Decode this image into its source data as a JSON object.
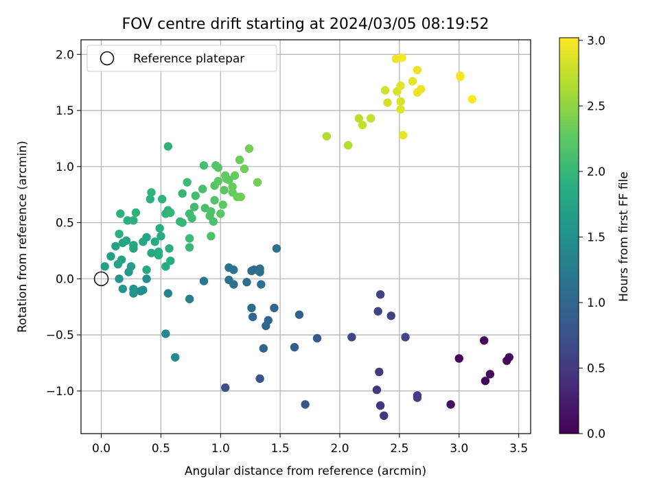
{
  "chart_data": {
    "type": "scatter",
    "title": "FOV centre drift starting at 2024/03/05 08:19:52",
    "xlabel": "Angular distance from reference (arcmin)",
    "ylabel": "Rotation from reference (arcmin)",
    "colorbar_label": "Hours from first FF file",
    "xlim": [
      -0.17,
      3.6
    ],
    "ylim": [
      -1.38,
      2.13
    ],
    "clim": [
      0.0,
      3.02
    ],
    "colormap": "viridis",
    "grid": true,
    "legend_placement": "top-left",
    "legend": [
      {
        "label": "Reference platepar",
        "marker": "open-circle"
      }
    ],
    "xticks": [
      {
        "v": 0.0,
        "l": "0.0"
      },
      {
        "v": 0.5,
        "l": "0.5"
      },
      {
        "v": 1.0,
        "l": "1.0"
      },
      {
        "v": 1.5,
        "l": "1.5"
      },
      {
        "v": 2.0,
        "l": "2.0"
      },
      {
        "v": 2.5,
        "l": "2.5"
      },
      {
        "v": 3.0,
        "l": "3.0"
      },
      {
        "v": 3.5,
        "l": "3.5"
      }
    ],
    "yticks": [
      {
        "v": -1.0,
        "l": "−1.0"
      },
      {
        "v": -0.5,
        "l": "−0.5"
      },
      {
        "v": 0.0,
        "l": "0.0"
      },
      {
        "v": 0.5,
        "l": "0.5"
      },
      {
        "v": 1.0,
        "l": "1.0"
      },
      {
        "v": 1.5,
        "l": "1.5"
      },
      {
        "v": 2.0,
        "l": "2.0"
      }
    ],
    "cticks": [
      {
        "v": 0.0,
        "l": "0.0"
      },
      {
        "v": 0.5,
        "l": "0.5"
      },
      {
        "v": 1.0,
        "l": "1.0"
      },
      {
        "v": 1.5,
        "l": "1.5"
      },
      {
        "v": 2.0,
        "l": "2.0"
      },
      {
        "v": 2.5,
        "l": "2.5"
      },
      {
        "v": 3.0,
        "l": "3.0"
      }
    ],
    "reference_point": {
      "x": 0.0,
      "y": 0.0
    },
    "points": [
      [
        3.0,
        -0.71,
        0.05
      ],
      [
        3.21,
        -0.55,
        0.04
      ],
      [
        3.22,
        -0.91,
        0.06
      ],
      [
        3.26,
        -0.85,
        0.07
      ],
      [
        3.4,
        -0.73,
        0.08
      ],
      [
        3.42,
        -0.7,
        0.07
      ],
      [
        2.93,
        -1.12,
        0.12
      ],
      [
        2.34,
        -1.13,
        0.45
      ],
      [
        2.37,
        -1.22,
        0.48
      ],
      [
        2.31,
        -0.99,
        0.5
      ],
      [
        2.33,
        -0.83,
        0.52
      ],
      [
        2.65,
        -1.04,
        0.55
      ],
      [
        2.65,
        -1.06,
        0.56
      ],
      [
        2.55,
        -0.52,
        0.6
      ],
      [
        2.1,
        -0.52,
        0.62
      ],
      [
        2.43,
        -0.33,
        0.58
      ],
      [
        2.32,
        -0.29,
        0.62
      ],
      [
        2.34,
        -0.14,
        0.6
      ],
      [
        1.04,
        -0.97,
        0.72
      ],
      [
        1.33,
        -0.89,
        0.78
      ],
      [
        1.71,
        -1.12,
        0.8
      ],
      [
        1.81,
        -0.53,
        0.85
      ],
      [
        1.62,
        -0.61,
        0.88
      ],
      [
        1.66,
        -0.32,
        0.93
      ],
      [
        1.36,
        -0.62,
        0.98
      ],
      [
        1.45,
        -0.26,
        0.97
      ],
      [
        1.4,
        -0.37,
        0.98
      ],
      [
        1.38,
        -0.42,
        1.02
      ],
      [
        1.26,
        -0.26,
        1.05
      ],
      [
        1.27,
        -0.34,
        1.02
      ],
      [
        1.22,
        -0.03,
        1.08
      ],
      [
        1.11,
        -0.05,
        1.1
      ],
      [
        1.26,
        0.07,
        1.08
      ],
      [
        1.28,
        0.08,
        1.05
      ],
      [
        1.33,
        0.09,
        1.07
      ],
      [
        1.33,
        0.06,
        1.1
      ],
      [
        1.34,
        -0.05,
        1.12
      ],
      [
        1.07,
        -0.01,
        1.15
      ],
      [
        1.07,
        0.1,
        1.17
      ],
      [
        1.11,
        0.08,
        1.18
      ],
      [
        1.47,
        0.27,
        1.1
      ],
      [
        0.86,
        -0.02,
        1.22
      ],
      [
        0.74,
        -0.18,
        1.28
      ],
      [
        0.56,
        -0.13,
        1.35
      ],
      [
        0.54,
        -0.49,
        1.38
      ],
      [
        0.62,
        -0.7,
        1.42
      ],
      [
        0.33,
        -0.11,
        1.45
      ],
      [
        0.35,
        -0.1,
        1.5
      ],
      [
        0.38,
        0.0,
        1.48
      ],
      [
        0.27,
        -0.09,
        1.52
      ],
      [
        0.27,
        -0.13,
        1.55
      ],
      [
        0.18,
        -0.09,
        1.58
      ],
      [
        0.15,
        0.0,
        1.6
      ],
      [
        0.23,
        0.06,
        1.62
      ],
      [
        0.25,
        0.11,
        1.65
      ],
      [
        0.03,
        0.11,
        1.7
      ],
      [
        0.08,
        0.2,
        1.68
      ],
      [
        0.14,
        0.13,
        1.72
      ],
      [
        0.17,
        0.17,
        1.75
      ],
      [
        0.12,
        0.29,
        1.72
      ],
      [
        0.18,
        0.32,
        1.74
      ],
      [
        0.21,
        0.34,
        1.78
      ],
      [
        0.27,
        0.3,
        1.8
      ],
      [
        0.27,
        0.27,
        1.76
      ],
      [
        0.35,
        0.33,
        1.78
      ],
      [
        0.38,
        0.37,
        1.77
      ],
      [
        0.38,
        0.08,
        1.82
      ],
      [
        0.42,
        0.23,
        1.82
      ],
      [
        0.45,
        0.33,
        1.84
      ],
      [
        0.48,
        0.24,
        1.86
      ],
      [
        0.48,
        0.21,
        1.88
      ],
      [
        0.5,
        0.38,
        1.86
      ],
      [
        0.49,
        0.45,
        1.9
      ],
      [
        0.54,
        0.11,
        1.85
      ],
      [
        0.57,
        0.27,
        1.92
      ],
      [
        0.58,
        0.16,
        1.88
      ],
      [
        0.15,
        0.4,
        1.9
      ],
      [
        0.16,
        0.58,
        1.92
      ],
      [
        0.22,
        0.52,
        1.9
      ],
      [
        0.27,
        0.52,
        1.92
      ],
      [
        0.29,
        0.59,
        1.94
      ],
      [
        0.41,
        0.71,
        1.92
      ],
      [
        0.42,
        0.77,
        1.95
      ],
      [
        0.51,
        0.71,
        1.96
      ],
      [
        0.54,
        0.58,
        1.95
      ],
      [
        0.56,
        0.61,
        1.96
      ],
      [
        0.58,
        0.59,
        1.98
      ],
      [
        0.56,
        1.18,
        1.95
      ],
      [
        0.66,
        0.51,
        2.0
      ],
      [
        0.68,
        0.5,
        2.0
      ],
      [
        0.68,
        0.76,
        2.02
      ],
      [
        0.72,
        0.86,
        2.04
      ],
      [
        0.74,
        0.36,
        2.04
      ],
      [
        0.74,
        0.28,
        2.02
      ],
      [
        0.74,
        0.58,
        2.05
      ],
      [
        0.76,
        0.54,
        2.06
      ],
      [
        0.78,
        0.64,
        2.07
      ],
      [
        0.79,
        0.74,
        2.08
      ],
      [
        0.85,
        0.8,
        2.1
      ],
      [
        0.86,
        1.01,
        2.1
      ],
      [
        0.87,
        0.63,
        2.12
      ],
      [
        0.91,
        0.56,
        2.14
      ],
      [
        0.92,
        0.6,
        2.15
      ],
      [
        0.94,
        0.51,
        2.14
      ],
      [
        0.92,
        0.38,
        2.16
      ],
      [
        0.95,
        0.7,
        2.18
      ],
      [
        0.95,
        0.83,
        2.2
      ],
      [
        0.96,
        1.01,
        2.2
      ],
      [
        0.98,
        0.99,
        2.22
      ],
      [
        0.98,
        0.87,
        2.24
      ],
      [
        1.0,
        0.58,
        2.22
      ],
      [
        1.02,
        0.66,
        2.25
      ],
      [
        1.03,
        0.79,
        2.24
      ],
      [
        1.04,
        0.92,
        2.26
      ],
      [
        1.05,
        0.89,
        2.28
      ],
      [
        1.07,
        0.88,
        2.27
      ],
      [
        1.1,
        0.77,
        2.28
      ],
      [
        1.1,
        0.82,
        2.3
      ],
      [
        1.12,
        0.92,
        2.3
      ],
      [
        1.14,
        0.73,
        2.32
      ],
      [
        1.16,
        1.06,
        2.32
      ],
      [
        1.17,
        0.73,
        2.34
      ],
      [
        1.2,
        0.98,
        2.35
      ],
      [
        1.24,
        1.16,
        2.36
      ],
      [
        1.31,
        0.86,
        2.36
      ],
      [
        1.89,
        1.27,
        2.65
      ],
      [
        2.07,
        1.19,
        2.68
      ],
      [
        2.16,
        1.43,
        2.72
      ],
      [
        2.19,
        1.37,
        2.74
      ],
      [
        2.26,
        1.43,
        2.75
      ],
      [
        2.38,
        1.68,
        2.8
      ],
      [
        2.4,
        1.57,
        2.82
      ],
      [
        2.47,
        1.96,
        2.95
      ],
      [
        2.48,
        1.67,
        2.85
      ],
      [
        2.51,
        1.58,
        2.86
      ],
      [
        2.51,
        1.72,
        2.88
      ],
      [
        2.51,
        1.51,
        2.88
      ],
      [
        2.52,
        1.97,
        2.98
      ],
      [
        2.53,
        1.28,
        2.9
      ],
      [
        2.61,
        1.76,
        2.9
      ],
      [
        2.65,
        1.86,
        2.92
      ],
      [
        2.65,
        1.66,
        2.93
      ],
      [
        2.68,
        1.69,
        2.94
      ],
      [
        3.01,
        1.8,
        2.98
      ],
      [
        3.01,
        1.81,
        2.99
      ],
      [
        3.11,
        1.6,
        3.01
      ]
    ]
  }
}
